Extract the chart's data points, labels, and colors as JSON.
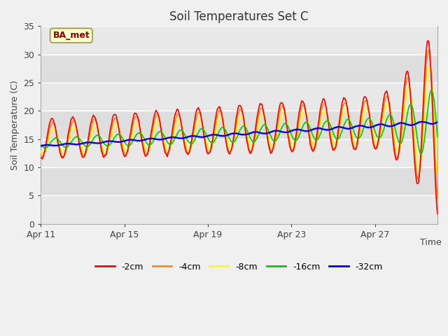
{
  "title": "Soil Temperatures Set C",
  "xlabel": "Time",
  "ylabel": "Soil Temperature (C)",
  "ylim": [
    0,
    35
  ],
  "xlim_days": [
    0,
    19
  ],
  "xtick_labels": [
    "Apr 11",
    "Apr 15",
    "Apr 19",
    "Apr 23",
    "Apr 27"
  ],
  "xtick_positions": [
    0,
    4,
    8,
    12,
    16
  ],
  "annotation_text": "BA_met",
  "fig_bg_color": "#f0f0f0",
  "plot_bg_color": "#e8e8e8",
  "band_light": "#dedede",
  "band_dark": "#cccccc",
  "line_colors": {
    "-2cm": "#ff0000",
    "-4cm": "#ff8c00",
    "-8cm": "#ffff00",
    "-16cm": "#00cc00",
    "-32cm": "#0000ff"
  },
  "legend_labels": [
    "-2cm",
    "-4cm",
    "-8cm",
    "-16cm",
    "-32cm"
  ],
  "n_points": 500,
  "end_day": 19
}
